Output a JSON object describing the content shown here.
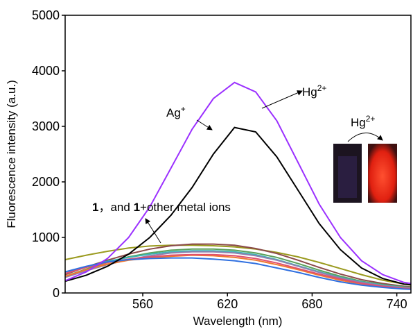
{
  "chart_data": {
    "type": "line",
    "xlabel": "Wavelength (nm)",
    "ylabel": "Fluorescence intensity (a.u.)",
    "x": [
      505,
      520,
      535,
      550,
      565,
      580,
      595,
      610,
      625,
      640,
      655,
      670,
      685,
      700,
      715,
      730,
      745,
      750
    ],
    "xlim": [
      505,
      750
    ],
    "xticks": [
      560,
      620,
      680,
      740
    ],
    "ylim": [
      0,
      5000
    ],
    "yticks": [
      0,
      1000,
      2000,
      3000,
      4000,
      5000
    ],
    "series": [
      {
        "color": "#9a9a1e",
        "values": [
          600,
          680,
          750,
          810,
          845,
          860,
          860,
          850,
          830,
          790,
          730,
          650,
          550,
          440,
          330,
          230,
          160,
          140
        ]
      },
      {
        "color": "#8b4a4a",
        "values": [
          330,
          470,
          590,
          700,
          790,
          850,
          880,
          880,
          860,
          800,
          710,
          590,
          460,
          340,
          240,
          170,
          120,
          110
        ]
      },
      {
        "color": "#5aa05a",
        "values": [
          300,
          430,
          550,
          650,
          720,
          770,
          790,
          790,
          770,
          720,
          640,
          530,
          410,
          300,
          210,
          150,
          110,
          100
        ]
      },
      {
        "color": "#3cb4b4",
        "values": [
          350,
          470,
          570,
          640,
          700,
          740,
          760,
          760,
          740,
          690,
          600,
          490,
          380,
          280,
          200,
          140,
          100,
          90
        ]
      },
      {
        "color": "#9080b0",
        "values": [
          280,
          400,
          510,
          600,
          670,
          720,
          740,
          740,
          720,
          670,
          590,
          480,
          370,
          270,
          190,
          130,
          95,
          85
        ]
      },
      {
        "color": "#f07830",
        "values": [
          300,
          420,
          520,
          590,
          630,
          660,
          680,
          670,
          640,
          590,
          510,
          420,
          320,
          230,
          160,
          110,
          80,
          75
        ]
      },
      {
        "color": "#e05070",
        "values": [
          350,
          460,
          550,
          610,
          650,
          680,
          690,
          690,
          670,
          620,
          540,
          440,
          340,
          250,
          170,
          120,
          85,
          80
        ]
      },
      {
        "color": "#3070e0",
        "values": [
          380,
          480,
          560,
          600,
          620,
          630,
          630,
          610,
          580,
          530,
          450,
          370,
          280,
          200,
          140,
          100,
          70,
          65
        ]
      },
      {
        "color": "#000000",
        "values": [
          210,
          320,
          480,
          700,
          1000,
          1400,
          1900,
          2500,
          2980,
          2900,
          2450,
          1850,
          1250,
          780,
          450,
          260,
          160,
          150
        ]
      },
      {
        "color": "#9b30ff",
        "values": [
          220,
          380,
          620,
          1000,
          1550,
          2250,
          2950,
          3500,
          3790,
          3620,
          3100,
          2350,
          1600,
          1000,
          580,
          330,
          190,
          170
        ]
      }
    ],
    "annotations": {
      "hg": {
        "text": "Hg",
        "sup": "2+"
      },
      "ag": {
        "text": "Ag",
        "sup": "+"
      },
      "others": [
        "1",
        "，and ",
        "1",
        "+other metal ions"
      ],
      "inset": {
        "text": "Hg",
        "sup": "2+"
      }
    }
  }
}
